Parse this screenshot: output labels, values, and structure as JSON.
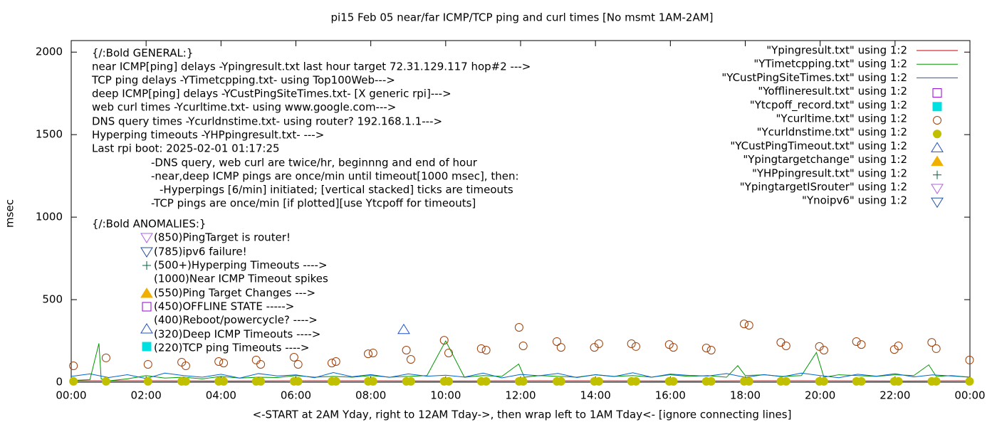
{
  "chart_data": {
    "type": "line",
    "title": "pi15 Feb 05  near/far ICMP/TCP ping and curl times [No msmt 1AM-2AM]",
    "xlabel": "<-START at 2AM Yday, right to 12AM Tday->, then wrap left to 1AM Tday<- [ignore connecting lines]",
    "ylabel": "msec",
    "xlim": [
      0,
      24
    ],
    "ylim": [
      0,
      2070
    ],
    "xticks": [
      {
        "value": 0,
        "label": "00:00"
      },
      {
        "value": 2,
        "label": "02:00"
      },
      {
        "value": 4,
        "label": "04:00"
      },
      {
        "value": 6,
        "label": "06:00"
      },
      {
        "value": 8,
        "label": "08:00"
      },
      {
        "value": 10,
        "label": "10:00"
      },
      {
        "value": 12,
        "label": "12:00"
      },
      {
        "value": 14,
        "label": "14:00"
      },
      {
        "value": 16,
        "label": "16:00"
      },
      {
        "value": 18,
        "label": "18:00"
      },
      {
        "value": 20,
        "label": "20:00"
      },
      {
        "value": 22,
        "label": "22:00"
      },
      {
        "value": 24,
        "label": "00:00"
      }
    ],
    "yticks": [
      0,
      500,
      1000,
      1500,
      2000
    ],
    "annotations": [
      "{/:Bold GENERAL:}",
      "near ICMP[ping] delays -Ypingresult.txt last hour target 72.31.129.117 hop#2 --->",
      "TCP ping delays -YTimetcpping.txt- using Top100Web--->",
      "deep ICMP[ping] delays -YCustPingSiteTimes.txt- [X generic rpi]--->",
      "web curl times -Ycurltime.txt- using www.google.com--->",
      "DNS query times -Ycurldnstime.txt- using router? 192.168.1.1--->",
      "Hyperping timeouts -YHPpingresult.txt- --->",
      "Last rpi boot: 2025-02-01 01:17:25",
      "-DNS query, web curl are twice/hr, beginnng and end of hour",
      "-near,deep ICMP pings are once/min until timeout[1000 msec], then:",
      "-Hyperpings [6/min] initiated; [vertical stacked] ticks are timeouts",
      "-TCP pings are once/min [if plotted][use Ytcpoff for timeouts]",
      "{/:Bold ANOMALIES:}",
      "(850)PingTarget is router!",
      "(785)ipv6 failure!",
      "(500+)Hyperping Timeouts ---->",
      "(1000)Near ICMP Timeout spikes",
      "(550)Ping Target Changes --->",
      "(450)OFFLINE STATE ----->",
      "(400)Reboot/powercycle? ---->",
      "(320)Deep ICMP Timeouts ---->",
      "(220)TCP ping Timeouts ---->"
    ],
    "series": [
      {
        "name": "\"Ypingresult.txt\" using 1:2",
        "color": "#cc0000",
        "style": "line",
        "x": [
          0,
          2,
          4,
          6,
          8,
          10,
          12,
          14,
          16,
          18,
          20,
          22,
          24
        ],
        "values": [
          8,
          8,
          7,
          8,
          8,
          7,
          8,
          8,
          7,
          8,
          8,
          7,
          8
        ]
      },
      {
        "name": "\"YTimetcpping.txt\" using 1:2",
        "color": "#009900",
        "style": "line",
        "x": [
          0,
          0.5,
          0.74,
          0.8,
          1,
          1.5,
          2,
          2.5,
          3,
          3.5,
          4,
          4.5,
          5,
          5.5,
          6,
          6.5,
          7,
          7.5,
          8,
          8.5,
          9,
          9.5,
          10,
          10.5,
          11,
          11.5,
          11.95,
          12.1,
          12.5,
          13,
          13.5,
          14,
          14.5,
          15,
          15.5,
          16,
          16.5,
          17,
          17.5,
          17.8,
          18,
          18.5,
          19,
          19.5,
          19.9,
          20.1,
          20.5,
          21,
          21.5,
          22,
          22.5,
          22.9,
          23.1,
          23.5,
          24
        ],
        "values": [
          10,
          15,
          235,
          20,
          8,
          20,
          40,
          25,
          30,
          20,
          35,
          25,
          30,
          28,
          40,
          30,
          35,
          30,
          40,
          30,
          35,
          40,
          250,
          30,
          40,
          35,
          110,
          30,
          40,
          35,
          30,
          45,
          35,
          40,
          30,
          45,
          35,
          40,
          30,
          100,
          40,
          45,
          35,
          40,
          180,
          30,
          45,
          40,
          35,
          45,
          40,
          105,
          35,
          40,
          30
        ]
      },
      {
        "name": "\"YCustPingSiteTimes.txt\" using 1:2",
        "color": "#0066cc",
        "style": "line",
        "x": [
          0,
          0.5,
          1,
          1.5,
          2,
          2.5,
          3,
          3.5,
          4,
          4.5,
          5,
          5.5,
          6,
          6.5,
          7,
          7.5,
          8,
          8.5,
          9,
          9.5,
          10,
          10.5,
          11,
          11.5,
          12,
          12.5,
          13,
          13.5,
          14,
          14.5,
          15,
          15.5,
          16,
          16.5,
          17,
          17.5,
          18,
          18.5,
          19,
          19.5,
          20,
          20.5,
          21,
          21.5,
          22,
          22.5,
          23,
          23.5,
          24
        ],
        "values": [
          35,
          50,
          28,
          45,
          22,
          55,
          40,
          30,
          48,
          25,
          52,
          38,
          44,
          27,
          58,
          33,
          46,
          29,
          50,
          36,
          42,
          31,
          55,
          26,
          47,
          39,
          53,
          28,
          45,
          34,
          57,
          30,
          49,
          41,
          37,
          52,
          29,
          46,
          33,
          55,
          40,
          27,
          48,
          36,
          51,
          32,
          44,
          38,
          30
        ]
      },
      {
        "name": "\"Yofflineresult.txt\" using 1:2",
        "color": "#9400d3",
        "style": "marker",
        "marker": "square-open",
        "x": [],
        "values": []
      },
      {
        "name": "\"Ytcpoff_record.txt\" using 1:2",
        "color": "#00e0e0",
        "style": "marker",
        "marker": "square-filled",
        "x": [],
        "values": []
      },
      {
        "name": "\"Ycurltime.txt\" using 1:2",
        "color": "#a0400a",
        "style": "marker",
        "marker": "circle-open",
        "x": [
          0.06,
          0.93,
          2.05,
          2.95,
          3.06,
          3.94,
          4.07,
          4.94,
          5.06,
          5.95,
          6.06,
          6.96,
          7.07,
          7.93,
          8.06,
          8.95,
          9.07,
          9.96,
          10.08,
          10.95,
          11.08,
          11.96,
          12.07,
          12.97,
          13.08,
          13.97,
          14.09,
          14.96,
          15.08,
          15.97,
          16.08,
          16.96,
          17.09,
          17.97,
          18.1,
          18.95,
          19.09,
          19.98,
          20.1,
          20.97,
          21.1,
          21.98,
          22.09,
          22.98,
          23.1,
          23.99
        ],
        "values": [
          99,
          147,
          108,
          121,
          99,
          125,
          116,
          134,
          108,
          151,
          108,
          116,
          125,
          172,
          177,
          194,
          138,
          254,
          177,
          203,
          194,
          332,
          220,
          246,
          211,
          211,
          233,
          233,
          216,
          228,
          211,
          207,
          194,
          353,
          345,
          241,
          220,
          216,
          194,
          246,
          228,
          198,
          220,
          241,
          203,
          134
        ]
      },
      {
        "name": "\"Ycurldnstime.txt\" using 1:2",
        "color": "#c0c000",
        "style": "marker",
        "marker": "circle-filled",
        "x": [
          0.06,
          0.93,
          2.05,
          2.95,
          3.06,
          3.94,
          4.07,
          4.94,
          5.06,
          5.95,
          6.06,
          6.96,
          7.07,
          7.93,
          8.06,
          8.95,
          9.07,
          9.96,
          10.08,
          10.95,
          11.08,
          11.96,
          12.07,
          12.97,
          13.08,
          13.97,
          14.09,
          14.96,
          15.08,
          15.97,
          16.08,
          16.96,
          17.09,
          17.97,
          18.1,
          18.95,
          19.09,
          19.98,
          20.1,
          20.97,
          21.1,
          21.98,
          22.09,
          22.98,
          23.1,
          23.99
        ],
        "values": [
          5,
          5,
          5,
          5,
          5,
          5,
          5,
          5,
          5,
          5,
          5,
          5,
          5,
          5,
          5,
          5,
          5,
          5,
          5,
          5,
          5,
          5,
          5,
          5,
          5,
          5,
          5,
          5,
          5,
          5,
          5,
          5,
          5,
          5,
          5,
          5,
          5,
          5,
          5,
          5,
          5,
          5,
          5,
          5,
          5,
          5
        ]
      },
      {
        "name": "\"YCustPingTimeout.txt\" using 1:2",
        "color": "#1e50c8",
        "style": "marker",
        "marker": "triangle-open",
        "x": [
          8.88
        ],
        "values": [
          320
        ]
      },
      {
        "name": "\"Ypingtargetchange\" using 1:2",
        "color": "#f0b000",
        "style": "marker",
        "marker": "triangle-filled",
        "x": [],
        "values": []
      },
      {
        "name": "\"YHPpingresult.txt\" using 1:2",
        "color": "#006040",
        "style": "marker",
        "marker": "plus",
        "x": [],
        "values": []
      },
      {
        "name": "\"YpingtargetISrouter\" using 1:2",
        "color": "#b060e0",
        "style": "marker",
        "marker": "triangle-down-open",
        "x": [],
        "values": []
      },
      {
        "name": "\"Ynoipv6\" using 1:2",
        "color": "#1e50a0",
        "style": "marker",
        "marker": "triangle-down-open",
        "x": [],
        "values": []
      }
    ]
  }
}
